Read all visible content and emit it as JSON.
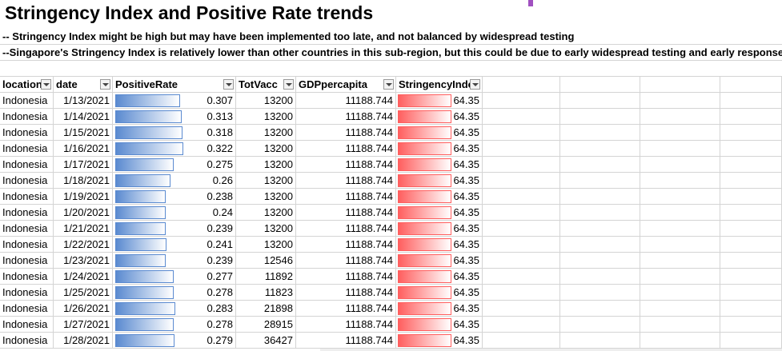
{
  "header": {
    "title": "Stringency Index and Positive Rate trends",
    "notes": [
      "-- Stringency Index might be high but may have been implemented too late, and not balanced by widespread testing",
      "--Singapore's Stringency Index is relatively lower than other countries in this sub-region, but this could be due to early widespread testing and early response"
    ]
  },
  "table": {
    "columns": [
      "location",
      "date",
      "PositiveRate",
      "TotVacc",
      "GDPpercapita",
      "StringencyIndex"
    ],
    "rows": [
      [
        "Indonesia",
        "1/13/2021",
        0.307,
        13200,
        11188.744,
        64.35
      ],
      [
        "Indonesia",
        "1/14/2021",
        0.313,
        13200,
        11188.744,
        64.35
      ],
      [
        "Indonesia",
        "1/15/2021",
        0.318,
        13200,
        11188.744,
        64.35
      ],
      [
        "Indonesia",
        "1/16/2021",
        0.322,
        13200,
        11188.744,
        64.35
      ],
      [
        "Indonesia",
        "1/17/2021",
        0.275,
        13200,
        11188.744,
        64.35
      ],
      [
        "Indonesia",
        "1/18/2021",
        0.26,
        13200,
        11188.744,
        64.35
      ],
      [
        "Indonesia",
        "1/19/2021",
        0.238,
        13200,
        11188.744,
        64.35
      ],
      [
        "Indonesia",
        "1/20/2021",
        0.24,
        13200,
        11188.744,
        64.35
      ],
      [
        "Indonesia",
        "1/21/2021",
        0.239,
        13200,
        11188.744,
        64.35
      ],
      [
        "Indonesia",
        "1/22/2021",
        0.241,
        13200,
        11188.744,
        64.35
      ],
      [
        "Indonesia",
        "1/23/2021",
        0.239,
        12546,
        11188.744,
        64.35
      ],
      [
        "Indonesia",
        "1/24/2021",
        0.277,
        11892,
        11188.744,
        64.35
      ],
      [
        "Indonesia",
        "1/25/2021",
        0.278,
        11823,
        11188.744,
        64.35
      ],
      [
        "Indonesia",
        "1/26/2021",
        0.283,
        21898,
        11188.744,
        64.35
      ],
      [
        "Indonesia",
        "1/27/2021",
        0.278,
        28915,
        11188.744,
        64.35
      ],
      [
        "Indonesia",
        "1/28/2021",
        0.279,
        36427,
        11188.744,
        64.35
      ]
    ]
  }
}
